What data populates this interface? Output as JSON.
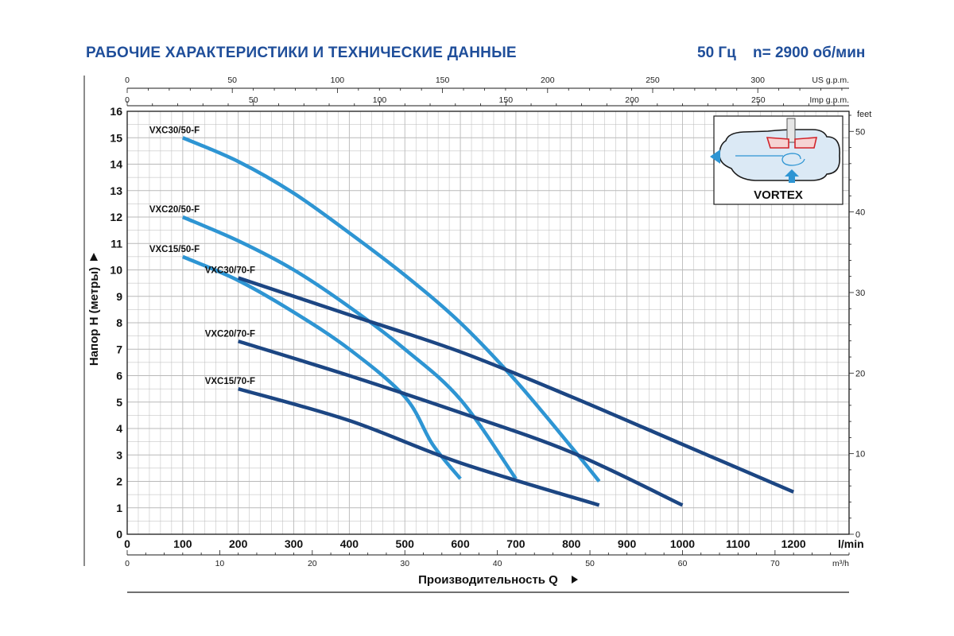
{
  "header": {
    "title": "РАБОЧИЕ ХАРАКТЕРИСТИКИ И ТЕХНИЧЕСКИЕ ДАННЫЕ",
    "frequency": "50 Гц",
    "speed": "n= 2900 об/мин"
  },
  "inset": {
    "label": "VORTEX"
  },
  "colors": {
    "light_series": "#2e95d3",
    "dark_series": "#1c4683",
    "grid": "#b9b9b9",
    "axis": "#1a1a1a",
    "title": "#1f4e9a",
    "inset_red": "#d2232a"
  },
  "chart_data": {
    "type": "line",
    "title": "",
    "xlabel": "Производительность Q",
    "ylabel": "Напор H (метры)",
    "xlim": [
      0,
      1300
    ],
    "ylim": [
      0,
      16
    ],
    "x_unit": "l/min",
    "x_ticks": [
      0,
      100,
      200,
      300,
      400,
      500,
      600,
      700,
      800,
      900,
      1000,
      1100,
      1200
    ],
    "y_ticks": [
      0,
      1,
      2,
      3,
      4,
      5,
      6,
      7,
      8,
      9,
      10,
      11,
      12,
      13,
      14,
      15,
      16
    ],
    "secondary_axes": {
      "top_us": {
        "unit": "US g.p.m.",
        "ticks": [
          0,
          50,
          100,
          150,
          200,
          250,
          300
        ]
      },
      "top_imp": {
        "unit": "Imp g.p.m.",
        "ticks": [
          0,
          50,
          100,
          150,
          200,
          250
        ]
      },
      "bottom_m3h": {
        "unit": "m³/h",
        "ticks": [
          0,
          10,
          20,
          30,
          40,
          50,
          60,
          70
        ]
      },
      "right_feet": {
        "unit": "feet",
        "ticks": [
          0,
          10,
          20,
          30,
          40,
          50
        ]
      }
    },
    "grid": true,
    "series": [
      {
        "name": "VXC30/50-F",
        "color": "light",
        "points": [
          [
            100,
            15
          ],
          [
            200,
            14.1
          ],
          [
            300,
            12.9
          ],
          [
            400,
            11.4
          ],
          [
            500,
            9.8
          ],
          [
            600,
            8.0
          ],
          [
            700,
            5.8
          ],
          [
            800,
            3.3
          ],
          [
            850,
            2.0
          ]
        ]
      },
      {
        "name": "VXC20/50-F",
        "color": "light",
        "points": [
          [
            100,
            12
          ],
          [
            200,
            11.1
          ],
          [
            300,
            10.0
          ],
          [
            400,
            8.6
          ],
          [
            500,
            7.0
          ],
          [
            600,
            5.1
          ],
          [
            700,
            2.1
          ]
        ]
      },
      {
        "name": "VXC15/50-F",
        "color": "light",
        "points": [
          [
            100,
            10.5
          ],
          [
            200,
            9.6
          ],
          [
            300,
            8.4
          ],
          [
            400,
            7.0
          ],
          [
            500,
            5.2
          ],
          [
            550,
            3.4
          ],
          [
            600,
            2.1
          ]
        ]
      },
      {
        "name": "VXC30/70-F",
        "color": "dark",
        "points": [
          [
            200,
            9.7
          ],
          [
            400,
            8.3
          ],
          [
            600,
            6.9
          ],
          [
            800,
            5.2
          ],
          [
            1000,
            3.4
          ],
          [
            1200,
            1.6
          ]
        ]
      },
      {
        "name": "VXC20/70-F",
        "color": "dark",
        "points": [
          [
            200,
            7.3
          ],
          [
            400,
            6.0
          ],
          [
            600,
            4.6
          ],
          [
            800,
            3.1
          ],
          [
            1000,
            1.1
          ]
        ]
      },
      {
        "name": "VXC15/70-F",
        "color": "dark",
        "points": [
          [
            200,
            5.5
          ],
          [
            400,
            4.3
          ],
          [
            600,
            2.7
          ],
          [
            850,
            1.1
          ]
        ]
      }
    ]
  }
}
